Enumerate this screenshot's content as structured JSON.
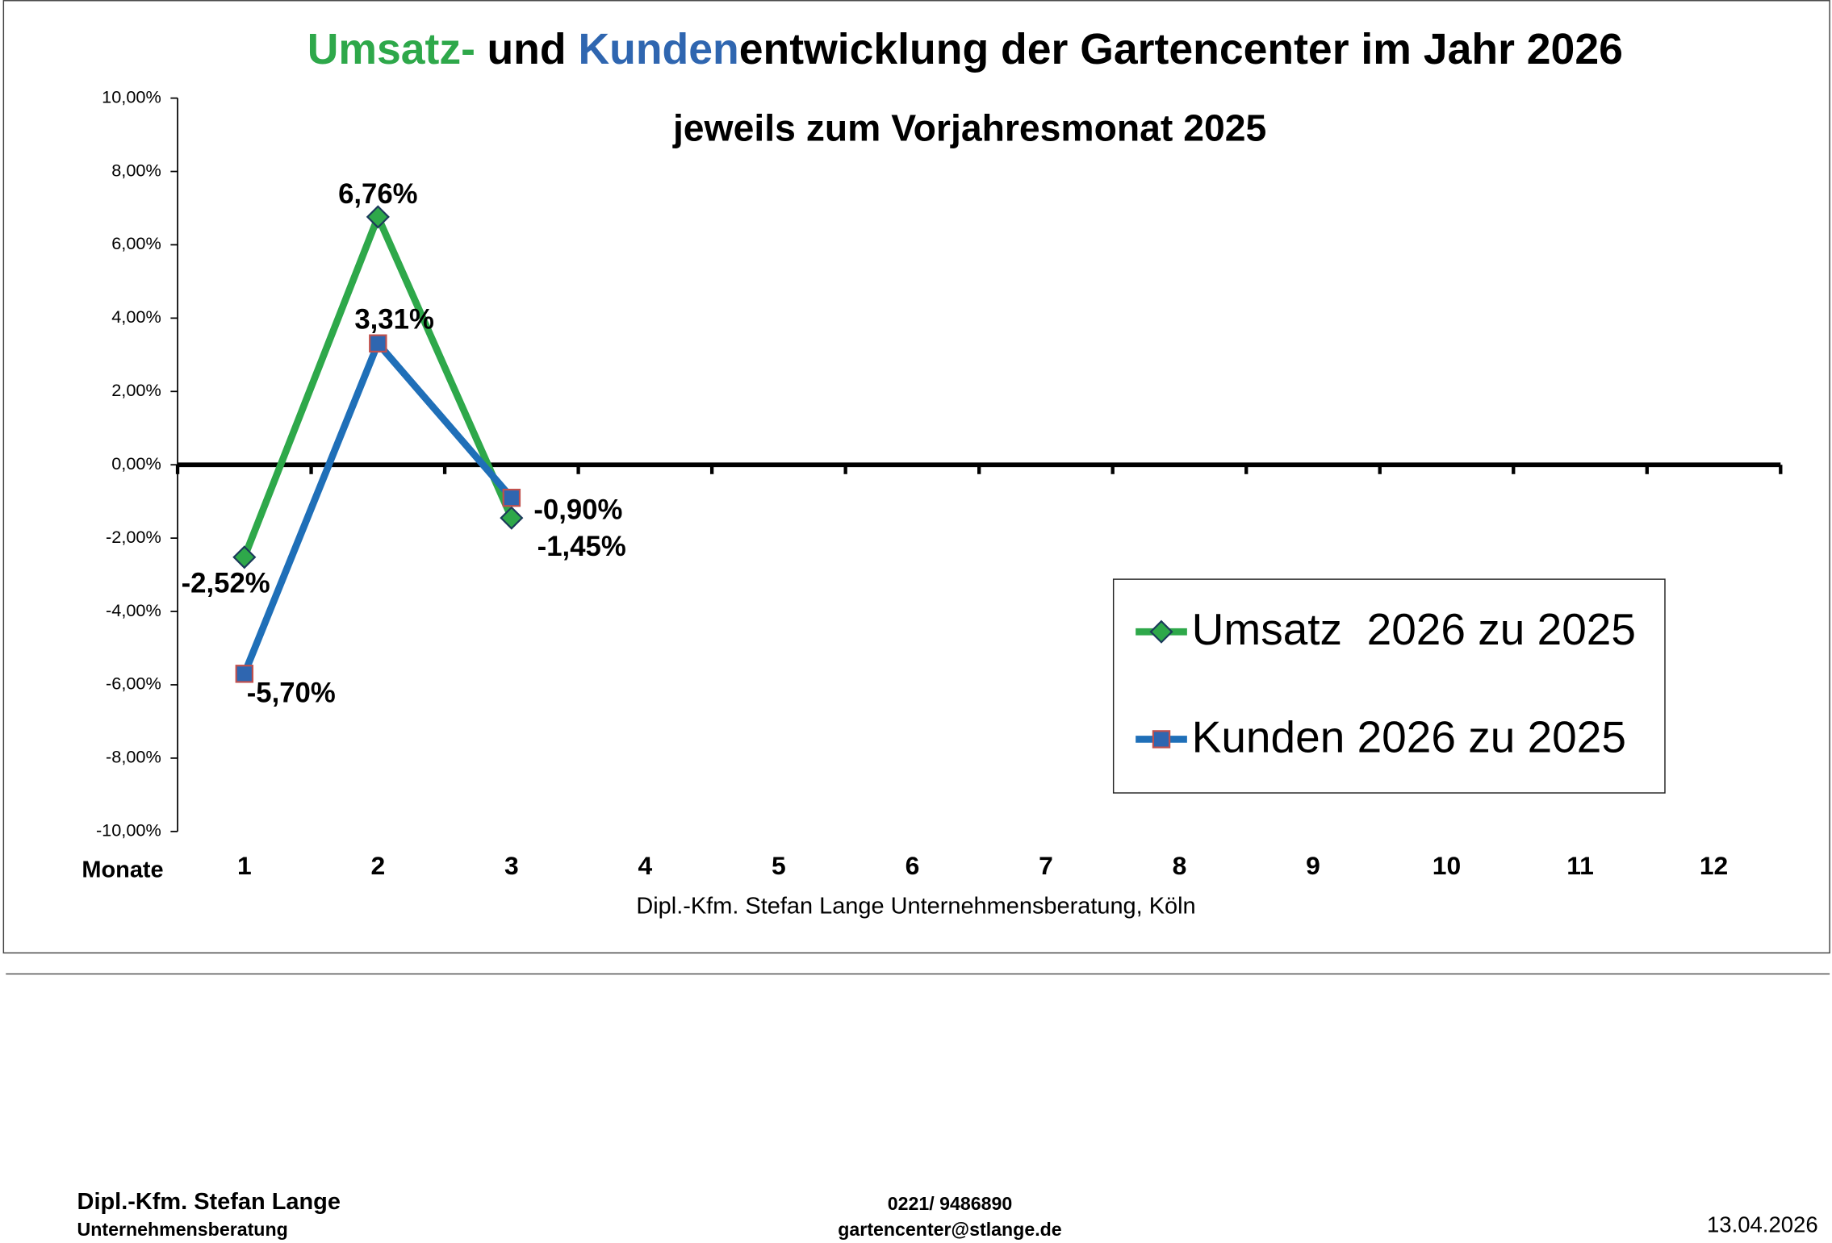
{
  "chart_data": {
    "type": "line",
    "title_parts": [
      "Umsatz-",
      "und ",
      "Kunden",
      "entwicklung der Gartencenter im Jahr 2026"
    ],
    "title_colors": [
      "#2ea84a",
      "#000000",
      "#2f66b0",
      "#000000"
    ],
    "subtitle": "jeweils zum Vorjahresmonat 2025",
    "x_label": "Monate",
    "source": "Dipl.-Kfm. Stefan Lange Unternehmensberatung, Köln",
    "categories": [
      "1",
      "2",
      "3",
      "4",
      "5",
      "6",
      "7",
      "8",
      "9",
      "10",
      "11",
      "12"
    ],
    "series": [
      {
        "name": "Umsatz  2026 zu 2025",
        "color": "#2ea84a",
        "marker": "diamond",
        "marker_color": "#2ea84a",
        "values": [
          -2.52,
          6.76,
          -1.45,
          null,
          null,
          null,
          null,
          null,
          null,
          null,
          null,
          null
        ],
        "value_labels": [
          "-2,52%",
          "6,76%",
          "-1,45%",
          null,
          null,
          null,
          null,
          null,
          null,
          null,
          null,
          null
        ]
      },
      {
        "name": "Kunden 2026 zu 2025",
        "color": "#1f6fb8",
        "marker": "square",
        "marker_color": "#2f66b0",
        "values": [
          -5.7,
          3.31,
          -0.9,
          null,
          null,
          null,
          null,
          null,
          null,
          null,
          null,
          null
        ],
        "value_labels": [
          "-5,70%",
          "3,31%",
          "-0,90%",
          null,
          null,
          null,
          null,
          null,
          null,
          null,
          null,
          null
        ]
      }
    ],
    "ylim": [
      -10,
      10
    ],
    "yticks": [
      {
        "value": -10,
        "label": "-10,00%"
      },
      {
        "value": -8,
        "label": "-8,00%"
      },
      {
        "value": -6,
        "label": "-6,00%"
      },
      {
        "value": -4,
        "label": "-4,00%"
      },
      {
        "value": -2,
        "label": "-2,00%"
      },
      {
        "value": 0,
        "label": "0,00%"
      },
      {
        "value": 2,
        "label": "2,00%"
      },
      {
        "value": 4,
        "label": "4,00%"
      },
      {
        "value": 6,
        "label": "6,00%"
      },
      {
        "value": 8,
        "label": "8,00%"
      },
      {
        "value": 10,
        "label": "10,00%"
      }
    ],
    "grid": false,
    "legend": "lower right"
  },
  "footer": {
    "name": "Dipl.-Kfm. Stefan Lange",
    "company": "Unternehmensberatung",
    "phone": "0221/ 9486890",
    "email": "gartencenter@stlange.de",
    "date": "13.04.2026"
  }
}
